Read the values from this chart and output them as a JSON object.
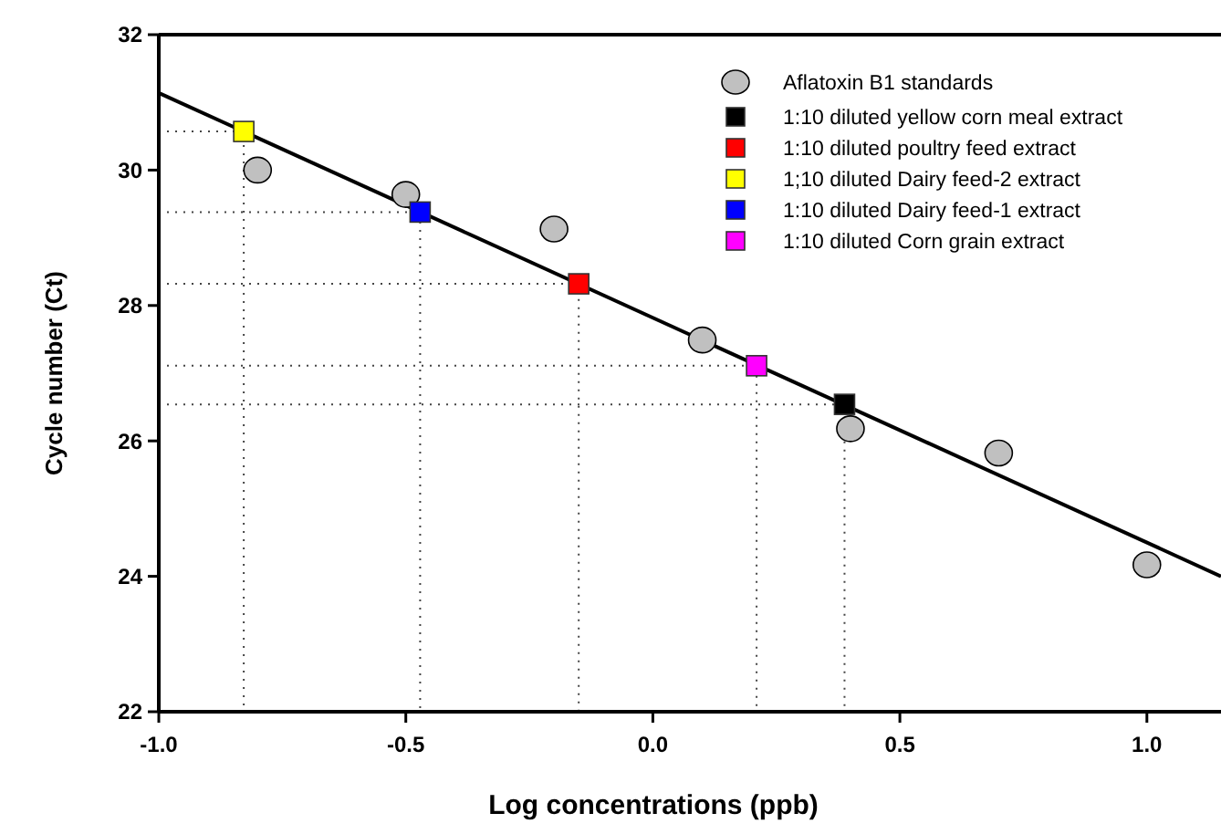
{
  "chart_data": {
    "type": "scatter",
    "xlabel": "Log concentrations (ppb)",
    "ylabel": "Cycle number (Ct)",
    "xlim": [
      -1.0,
      1.15
    ],
    "xticks": [
      {
        "value": -1.0,
        "label": "-1.0"
      },
      {
        "value": -0.5,
        "label": "-0.5"
      },
      {
        "value": 0,
        "label": "0.0"
      },
      {
        "value": 0.5,
        "label": "0.5"
      },
      {
        "value": 1.0,
        "label": "1.0"
      }
    ],
    "ylim": [
      22,
      32
    ],
    "yticks": [
      22,
      24,
      26,
      28,
      30,
      32
    ],
    "grid": false,
    "legend": "top right",
    "series": [
      {
        "name": "Aflatoxin B1 standards",
        "color": "#c0c0c0",
        "marker": "circle",
        "x": [
          -0.8,
          -0.5,
          -0.2,
          0.1,
          0.4,
          0.7,
          1.0
        ],
        "values": [
          30.0,
          29.64,
          29.13,
          27.49,
          26.18,
          25.82,
          24.17
        ]
      },
      {
        "name": "1:10 diluted yellow corn meal extract",
        "color": "#000000",
        "marker": "square",
        "x": [
          0.388
        ],
        "values": [
          26.54
        ]
      },
      {
        "name": "1:10 diluted poultry feed extract",
        "color": "#ff0000",
        "marker": "square",
        "x": [
          -0.15
        ],
        "values": [
          28.32
        ]
      },
      {
        "name": "1;10 diluted Dairy feed-2 extract",
        "color": "#ffff00",
        "marker": "square",
        "x": [
          -0.828
        ],
        "values": [
          30.57
        ]
      },
      {
        "name": "1:10 diluted Dairy feed-1 extract",
        "color": "#0000ff",
        "marker": "square",
        "x": [
          -0.471
        ],
        "values": [
          29.38
        ]
      },
      {
        "name": "1:10 diluted Corn grain extract",
        "color": "#ff00ff",
        "marker": "square",
        "x": [
          0.21
        ],
        "values": [
          27.11
        ]
      },
      {
        "type": "line",
        "color": "#444444",
        "line_style": "dotted",
        "x": [
          -1.0,
          0.388,
          0.388
        ],
        "values": [
          26.54,
          26.54,
          22
        ]
      },
      {
        "type": "line",
        "color": "#444444",
        "line_style": "dotted",
        "x": [
          -1.0,
          -0.15,
          -0.15
        ],
        "values": [
          28.32,
          28.32,
          22
        ]
      },
      {
        "type": "line",
        "color": "#444444",
        "line_style": "dotted",
        "x": [
          -1.0,
          -0.828,
          -0.828
        ],
        "values": [
          30.57,
          30.57,
          22
        ]
      },
      {
        "type": "line",
        "color": "#444444",
        "line_style": "dotted",
        "x": [
          -1.0,
          -0.471,
          -0.471
        ],
        "values": [
          29.38,
          29.38,
          22
        ]
      },
      {
        "type": "line",
        "color": "#444444",
        "line_style": "dotted",
        "x": [
          -1.0,
          0.21,
          0.21
        ],
        "values": [
          27.11,
          27.11,
          22
        ]
      },
      {
        "type": "line",
        "color": "#000000",
        "line_style": "solid",
        "x": [
          -1.0,
          1.15
        ],
        "values": [
          31.14,
          24.0
        ]
      }
    ]
  }
}
